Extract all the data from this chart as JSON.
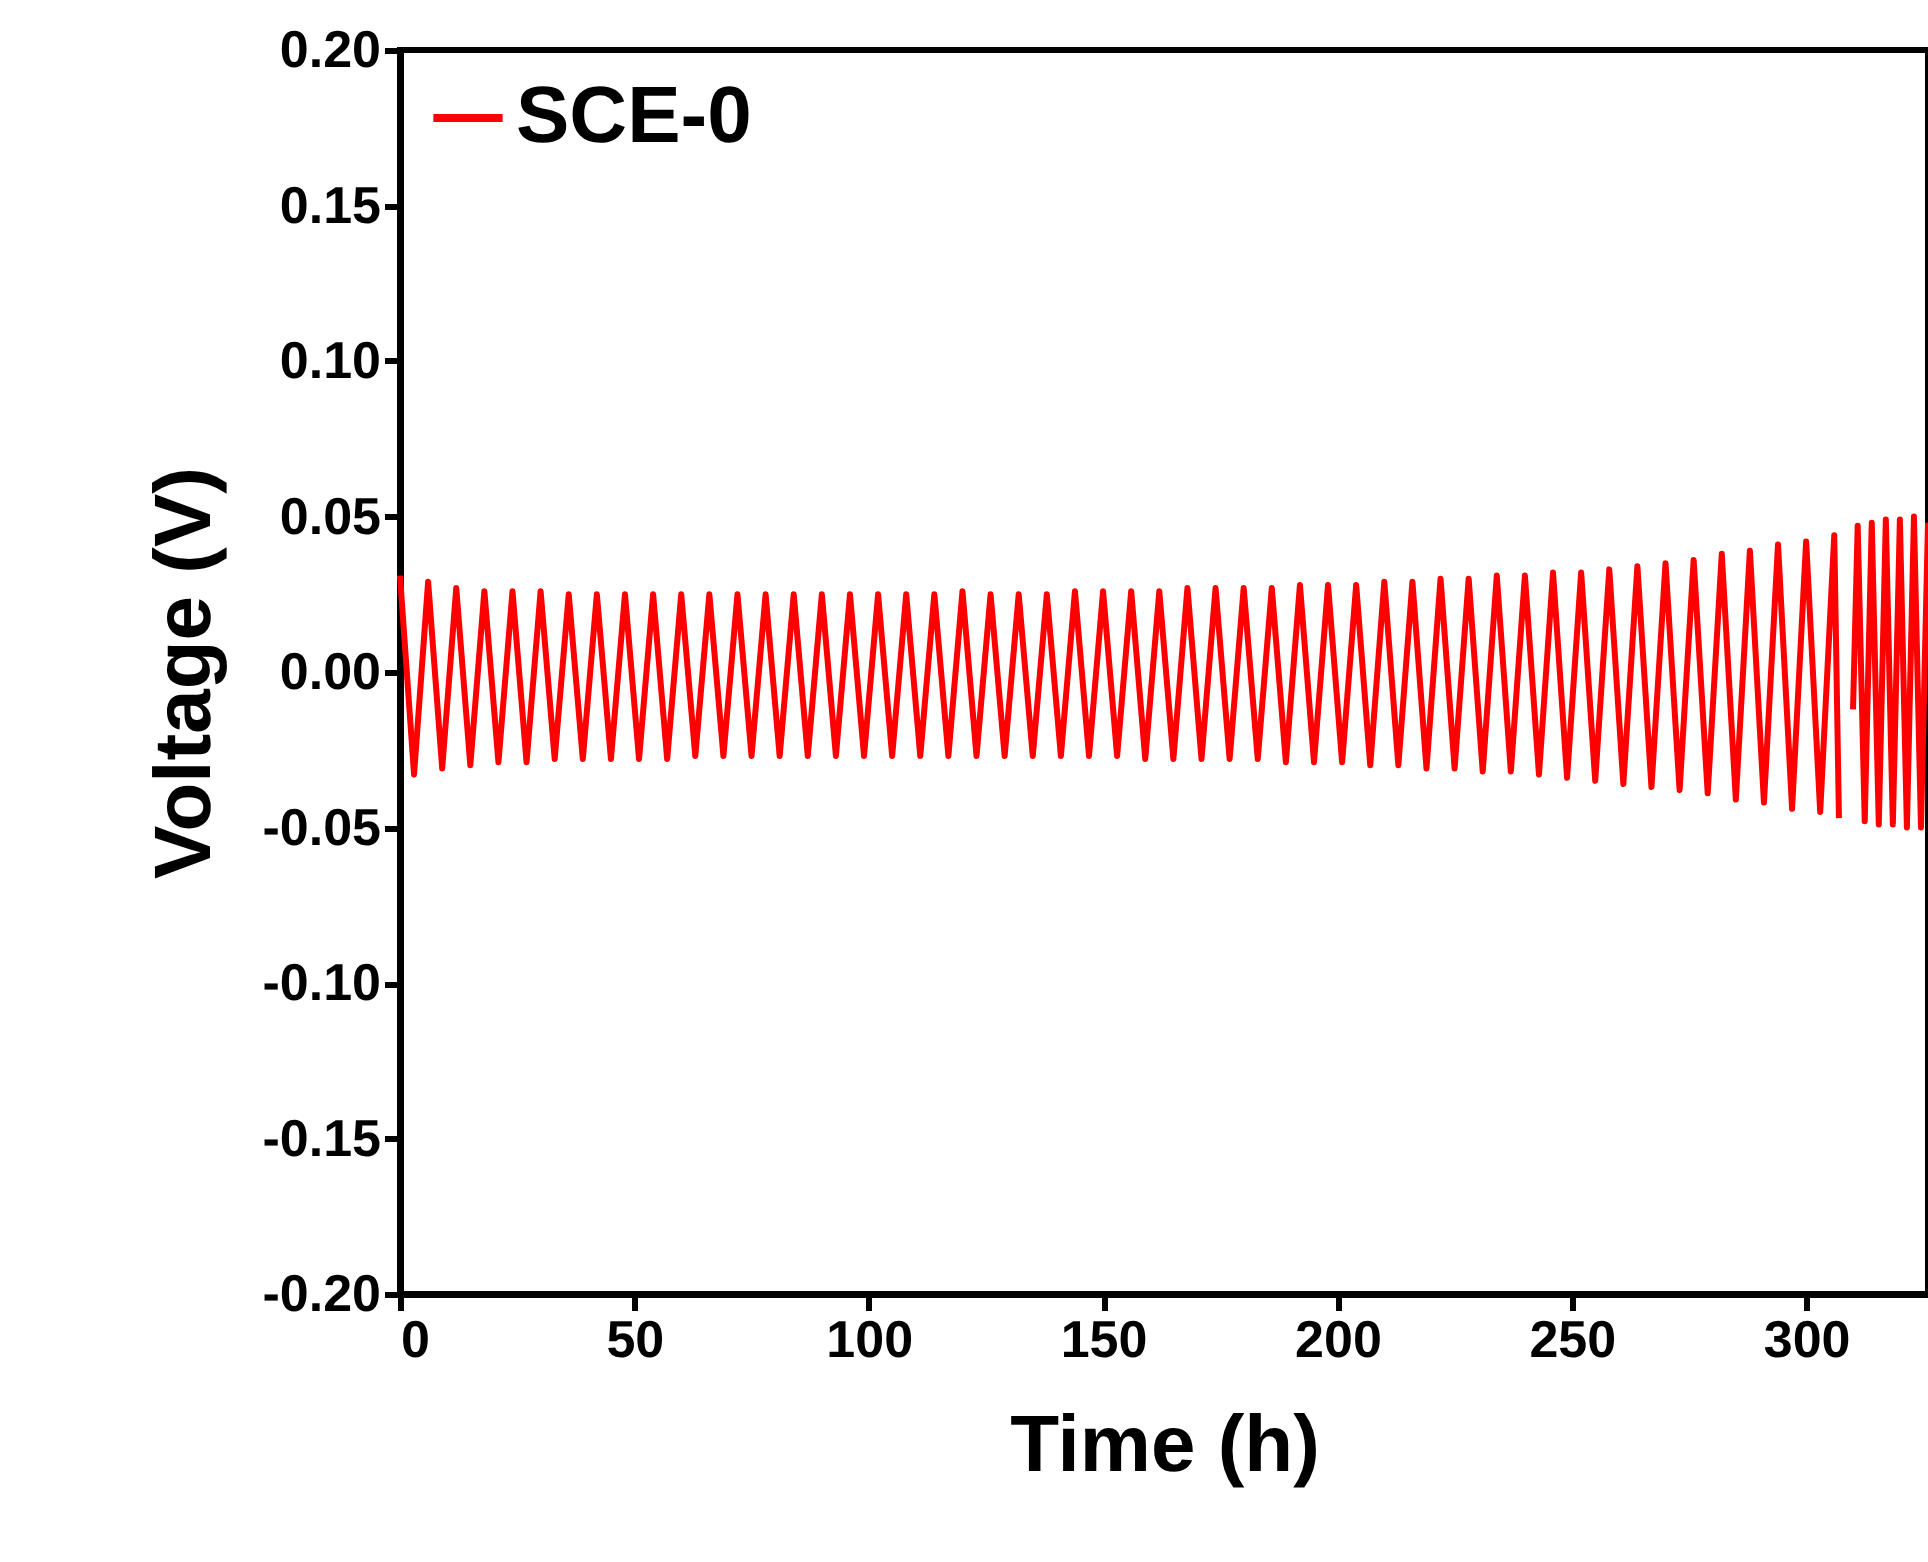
{
  "chart_data": {
    "type": "line",
    "xlabel": "Time (h)",
    "ylabel": "Voltage (V)",
    "xlim": [
      0,
      326
    ],
    "xticks": [
      0,
      50,
      100,
      150,
      200,
      250,
      300
    ],
    "ylim": [
      -0.2,
      0.2
    ],
    "yticks": [
      {
        "value": -0.2,
        "label": "-0.20"
      },
      {
        "value": -0.15,
        "label": "-0.15"
      },
      {
        "value": -0.1,
        "label": "-0.10"
      },
      {
        "value": -0.05,
        "label": "-0.05"
      },
      {
        "value": 0,
        "label": "0.00"
      },
      {
        "value": 0.05,
        "label": "0.05"
      },
      {
        "value": 0.1,
        "label": "0.10"
      },
      {
        "value": 0.15,
        "label": "0.15"
      },
      {
        "value": 0.2,
        "label": "0.20"
      }
    ],
    "grid": false,
    "legend": "top left",
    "marker": "none",
    "line_style": "solid",
    "series": [
      {
        "name": "SCE-0",
        "color": "#ff0000",
        "x": [
          0,
          3,
          6,
          9,
          12,
          15,
          18,
          21,
          24,
          27,
          30,
          33,
          36,
          39,
          42,
          45,
          48,
          51,
          54,
          57,
          60,
          63,
          66,
          69,
          72,
          75,
          78,
          81,
          84,
          87,
          90,
          93,
          96,
          99,
          102,
          105,
          108,
          111,
          114,
          117,
          120,
          123,
          126,
          129,
          132,
          135,
          138,
          141,
          144,
          147,
          150,
          153,
          156,
          159,
          162,
          165,
          168,
          171,
          174,
          177,
          180,
          183,
          186,
          189,
          192,
          195,
          198,
          201,
          204,
          207,
          210,
          213,
          216,
          219,
          222,
          225,
          228,
          231,
          234,
          237,
          240,
          243,
          246,
          249,
          252,
          255,
          258,
          261,
          264,
          267,
          270,
          273,
          276,
          279,
          282,
          285,
          288,
          291,
          294,
          297,
          300,
          303,
          306,
          307,
          308,
          310,
          311,
          312.5,
          314,
          315.5,
          317,
          318.5,
          320,
          321.5,
          323,
          324.5,
          326
        ],
        "values": [
          0.031,
          -0.033,
          0.029,
          -0.031,
          0.027,
          -0.03,
          0.026,
          -0.029,
          0.026,
          -0.029,
          0.026,
          -0.028,
          0.025,
          -0.028,
          0.025,
          -0.028,
          0.025,
          -0.028,
          0.025,
          -0.028,
          0.025,
          -0.027,
          0.025,
          -0.027,
          0.025,
          -0.027,
          0.025,
          -0.027,
          0.025,
          -0.027,
          0.025,
          -0.027,
          0.025,
          -0.027,
          0.025,
          -0.027,
          0.025,
          -0.027,
          0.025,
          -0.027,
          0.026,
          -0.027,
          0.025,
          -0.027,
          0.025,
          -0.027,
          0.025,
          -0.027,
          0.026,
          -0.027,
          0.026,
          -0.027,
          0.026,
          -0.028,
          0.026,
          -0.028,
          0.027,
          -0.028,
          0.027,
          -0.028,
          0.027,
          -0.028,
          0.027,
          -0.029,
          0.028,
          -0.029,
          0.028,
          -0.029,
          0.028,
          -0.03,
          0.029,
          -0.03,
          0.029,
          -0.031,
          0.03,
          -0.031,
          0.03,
          -0.032,
          0.031,
          -0.032,
          0.031,
          -0.033,
          0.032,
          -0.034,
          0.032,
          -0.035,
          0.033,
          -0.036,
          0.034,
          -0.037,
          0.035,
          -0.038,
          0.036,
          -0.039,
          0.038,
          -0.041,
          0.039,
          -0.042,
          0.041,
          -0.044,
          0.042,
          -0.045,
          0.044,
          -0.047,
          null,
          -0.012,
          0.047,
          -0.048,
          0.048,
          -0.049,
          0.049,
          -0.049,
          0.049,
          -0.05,
          0.05,
          -0.05,
          0.048
        ]
      }
    ]
  }
}
